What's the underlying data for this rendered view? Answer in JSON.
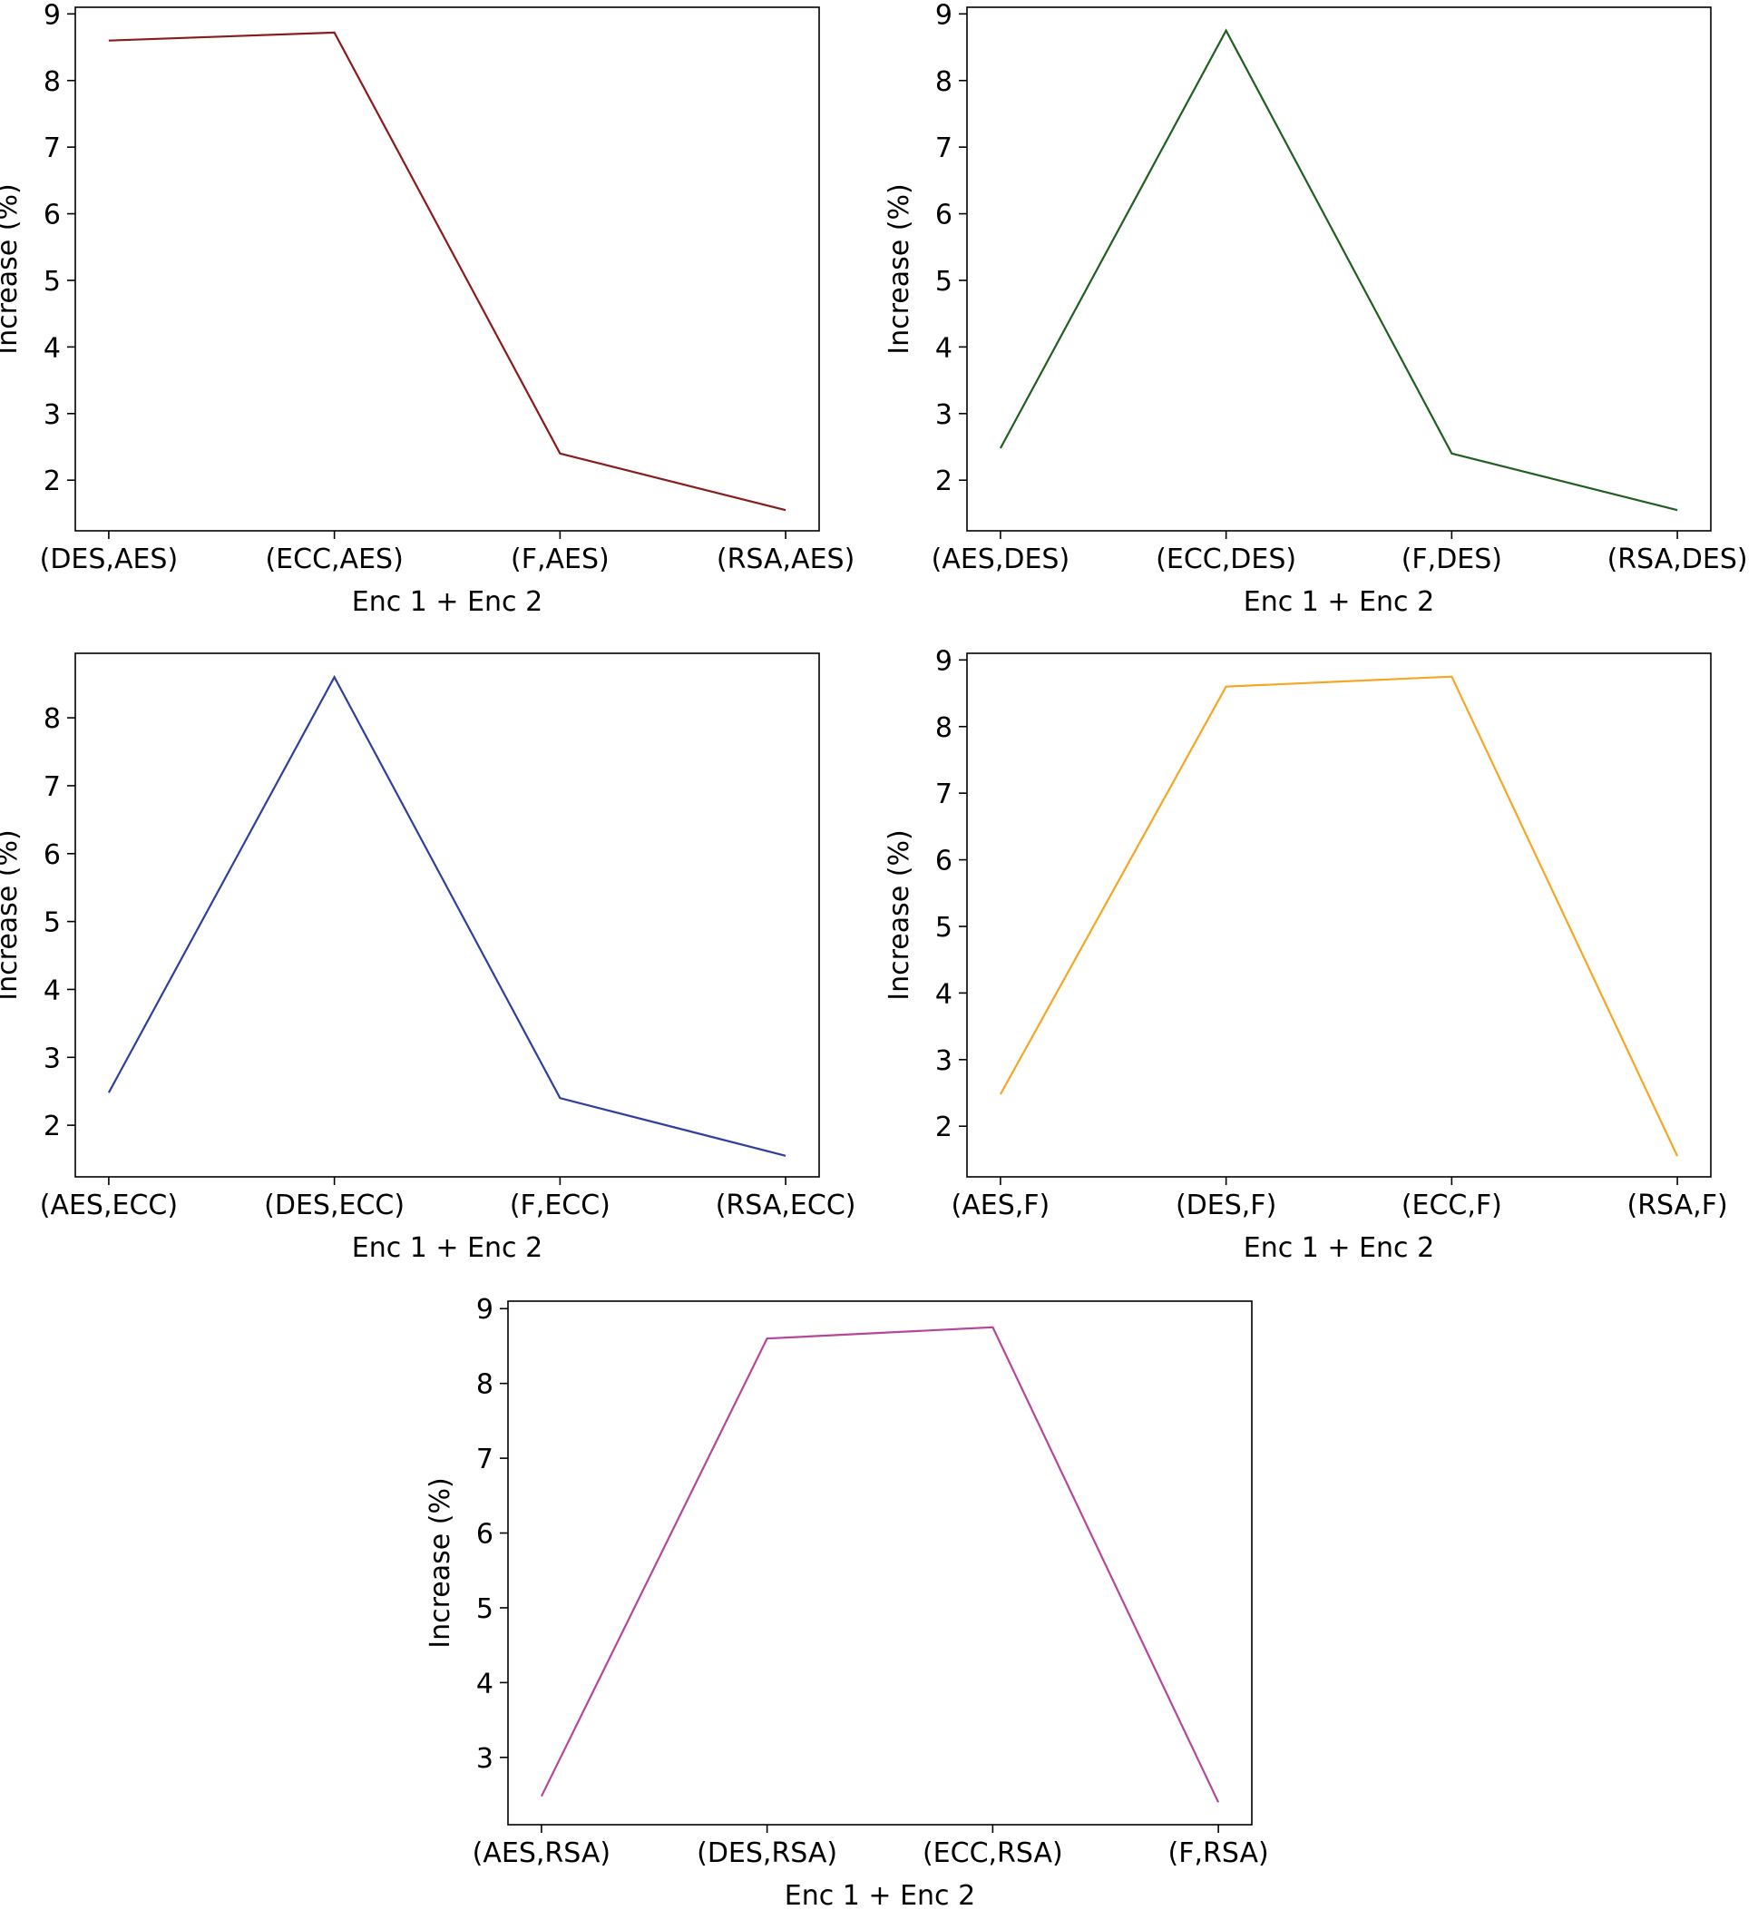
{
  "chart_data": [
    {
      "type": "line",
      "categories": [
        "(DES,AES)",
        "(ECC,AES)",
        "(F,AES)",
        "(RSA,AES)"
      ],
      "series": [
        {
          "values": [
            8.6,
            8.72,
            2.4,
            1.55
          ],
          "color": "#8b1a1a"
        }
      ],
      "xlabel": "Enc 1 + Enc 2",
      "ylabel": "Increase (%)",
      "yticks": [
        2,
        3,
        4,
        5,
        6,
        7,
        8,
        9
      ],
      "ylim": [
        1.24,
        9.1
      ],
      "grid": false
    },
    {
      "type": "line",
      "categories": [
        "(AES,DES)",
        "(ECC,DES)",
        "(F,DES)",
        "(RSA,DES)"
      ],
      "series": [
        {
          "values": [
            2.48,
            8.75,
            2.4,
            1.55
          ],
          "color": "#1f5f1f"
        }
      ],
      "xlabel": "Enc 1 + Enc 2",
      "ylabel": "Increase (%)",
      "yticks": [
        2,
        3,
        4,
        5,
        6,
        7,
        8,
        9
      ],
      "ylim": [
        1.24,
        9.1
      ],
      "grid": false
    },
    {
      "type": "line",
      "categories": [
        "(AES,ECC)",
        "(DES,ECC)",
        "(F,ECC)",
        "(RSA,ECC)"
      ],
      "series": [
        {
          "values": [
            2.48,
            8.6,
            2.4,
            1.55
          ],
          "color": "#2e3f9e"
        }
      ],
      "xlabel": "Enc 1 + Enc 2",
      "ylabel": "Increase (%)",
      "yticks": [
        2,
        3,
        4,
        5,
        6,
        7,
        8
      ],
      "ylim": [
        1.24,
        8.95
      ],
      "grid": false
    },
    {
      "type": "line",
      "categories": [
        "(AES,F)",
        "(DES,F)",
        "(ECC,F)",
        "(RSA,F)"
      ],
      "series": [
        {
          "values": [
            2.48,
            8.6,
            8.75,
            1.55
          ],
          "color": "#f5a623"
        }
      ],
      "xlabel": "Enc 1 + Enc 2",
      "ylabel": "Increase (%)",
      "yticks": [
        2,
        3,
        4,
        5,
        6,
        7,
        8,
        9
      ],
      "ylim": [
        1.24,
        9.1
      ],
      "grid": false
    },
    {
      "type": "line",
      "categories": [
        "(AES,RSA)",
        "(DES,RSA)",
        "(ECC,RSA)",
        "(F,RSA)"
      ],
      "series": [
        {
          "values": [
            2.48,
            8.6,
            8.75,
            2.4
          ],
          "color": "#b5479b"
        }
      ],
      "xlabel": "Enc 1 + Enc 2",
      "ylabel": "Increase (%)",
      "yticks": [
        3,
        4,
        5,
        6,
        7,
        8,
        9
      ],
      "ylim": [
        2.1,
        9.1
      ],
      "grid": false
    }
  ]
}
